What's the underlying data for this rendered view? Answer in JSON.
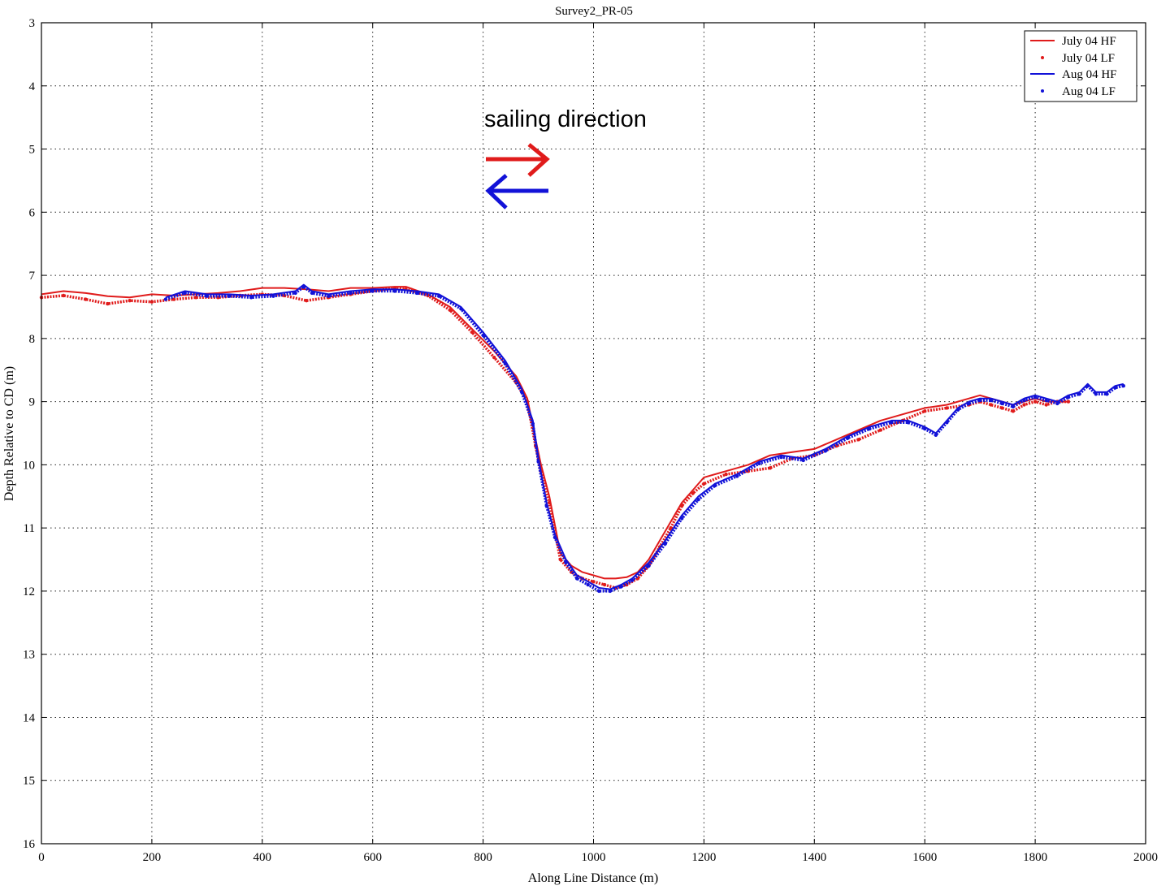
{
  "chart_data": {
    "type": "line",
    "title": "Survey2_PR-05",
    "xlabel": "Along Line Distance (m)",
    "ylabel": "Depth Relative to CD (m)",
    "xlim": [
      0,
      2000
    ],
    "ylim": [
      3,
      16
    ],
    "y_reversed": true,
    "grid": true,
    "legend_position": "top-right",
    "xticks": [
      "0",
      "200",
      "400",
      "600",
      "800",
      "1000",
      "1200",
      "1400",
      "1600",
      "1800",
      "2000"
    ],
    "yticks": [
      "3",
      "4",
      "5",
      "6",
      "7",
      "8",
      "9",
      "10",
      "11",
      "12",
      "13",
      "14",
      "15",
      "16"
    ],
    "annotation": "sailing direction",
    "series": [
      {
        "name": "July 04 HF",
        "color": "#e01b1b",
        "style": "line",
        "x": [
          0,
          40,
          80,
          120,
          160,
          200,
          240,
          280,
          320,
          360,
          400,
          440,
          480,
          520,
          560,
          600,
          640,
          660,
          700,
          740,
          780,
          820,
          860,
          880,
          895,
          905,
          920,
          940,
          960,
          980,
          1000,
          1020,
          1040,
          1060,
          1080,
          1100,
          1120,
          1140,
          1160,
          1180,
          1200,
          1240,
          1280,
          1320,
          1360,
          1400,
          1440,
          1480,
          1520,
          1560,
          1600,
          1640,
          1680,
          1700,
          1720,
          1740,
          1760,
          1780,
          1800,
          1820,
          1840,
          1860
        ],
        "y": [
          7.3,
          7.25,
          7.28,
          7.33,
          7.35,
          7.3,
          7.32,
          7.3,
          7.28,
          7.25,
          7.2,
          7.2,
          7.22,
          7.25,
          7.2,
          7.2,
          7.18,
          7.18,
          7.3,
          7.5,
          7.85,
          8.2,
          8.6,
          8.95,
          9.6,
          10.0,
          10.5,
          11.4,
          11.6,
          11.7,
          11.75,
          11.8,
          11.8,
          11.78,
          11.7,
          11.5,
          11.2,
          10.9,
          10.6,
          10.4,
          10.2,
          10.1,
          10.0,
          9.85,
          9.8,
          9.75,
          9.6,
          9.45,
          9.3,
          9.2,
          9.1,
          9.05,
          8.95,
          8.9,
          8.95,
          9.0,
          9.05,
          9.0,
          8.95,
          9.0,
          9.0,
          9.0
        ]
      },
      {
        "name": "July 04 LF",
        "color": "#e01b1b",
        "style": "markers",
        "x": [
          0,
          40,
          80,
          120,
          160,
          200,
          240,
          280,
          320,
          360,
          400,
          440,
          480,
          520,
          560,
          600,
          640,
          660,
          700,
          740,
          780,
          820,
          860,
          880,
          895,
          905,
          920,
          940,
          960,
          980,
          1000,
          1020,
          1040,
          1060,
          1080,
          1100,
          1120,
          1140,
          1160,
          1180,
          1200,
          1240,
          1280,
          1320,
          1360,
          1400,
          1440,
          1480,
          1520,
          1560,
          1600,
          1640,
          1680,
          1700,
          1720,
          1740,
          1760,
          1780,
          1800,
          1820,
          1840,
          1860
        ],
        "y": [
          7.35,
          7.32,
          7.38,
          7.45,
          7.4,
          7.42,
          7.38,
          7.35,
          7.35,
          7.32,
          7.3,
          7.32,
          7.4,
          7.35,
          7.3,
          7.25,
          7.2,
          7.22,
          7.32,
          7.55,
          7.9,
          8.3,
          8.7,
          9.0,
          9.7,
          10.1,
          10.6,
          11.5,
          11.7,
          11.8,
          11.85,
          11.9,
          11.95,
          11.9,
          11.8,
          11.6,
          11.3,
          11.0,
          10.65,
          10.45,
          10.3,
          10.15,
          10.1,
          10.05,
          9.9,
          9.85,
          9.7,
          9.6,
          9.45,
          9.3,
          9.15,
          9.1,
          9.05,
          9.0,
          9.05,
          9.1,
          9.15,
          9.05,
          9.0,
          9.05,
          9.0,
          9.0
        ]
      },
      {
        "name": "Aug 04 HF",
        "color": "#1212d8",
        "style": "line",
        "x": [
          225,
          260,
          300,
          340,
          380,
          420,
          460,
          475,
          490,
          520,
          560,
          600,
          640,
          680,
          720,
          760,
          800,
          840,
          870,
          890,
          900,
          915,
          930,
          950,
          970,
          990,
          1010,
          1030,
          1050,
          1070,
          1100,
          1130,
          1160,
          1190,
          1220,
          1260,
          1300,
          1340,
          1380,
          1420,
          1460,
          1500,
          1540,
          1570,
          1600,
          1620,
          1640,
          1660,
          1680,
          1700,
          1720,
          1740,
          1760,
          1780,
          1800,
          1820,
          1840,
          1860,
          1880,
          1895,
          1910,
          1930,
          1945,
          1960
        ],
        "y": [
          7.35,
          7.25,
          7.3,
          7.3,
          7.32,
          7.3,
          7.25,
          7.15,
          7.25,
          7.3,
          7.25,
          7.22,
          7.22,
          7.25,
          7.3,
          7.5,
          7.9,
          8.35,
          8.8,
          9.3,
          9.9,
          10.6,
          11.1,
          11.5,
          11.75,
          11.85,
          11.95,
          11.97,
          11.9,
          11.8,
          11.55,
          11.2,
          10.8,
          10.5,
          10.3,
          10.15,
          9.95,
          9.85,
          9.9,
          9.75,
          9.55,
          9.4,
          9.3,
          9.3,
          9.4,
          9.5,
          9.3,
          9.1,
          9.0,
          8.95,
          8.95,
          9.0,
          9.05,
          8.95,
          8.9,
          8.95,
          9.0,
          8.9,
          8.85,
          8.72,
          8.85,
          8.85,
          8.75,
          8.72
        ]
      },
      {
        "name": "Aug 04 LF",
        "color": "#1212d8",
        "style": "markers",
        "x": [
          225,
          260,
          300,
          340,
          380,
          420,
          460,
          475,
          490,
          520,
          560,
          600,
          640,
          680,
          720,
          760,
          800,
          840,
          870,
          890,
          900,
          915,
          930,
          950,
          970,
          990,
          1010,
          1030,
          1050,
          1070,
          1100,
          1130,
          1160,
          1190,
          1220,
          1260,
          1300,
          1340,
          1380,
          1420,
          1460,
          1500,
          1540,
          1570,
          1600,
          1620,
          1640,
          1660,
          1680,
          1700,
          1720,
          1740,
          1760,
          1780,
          1800,
          1820,
          1840,
          1860,
          1880,
          1895,
          1910,
          1930,
          1945,
          1960
        ],
        "y": [
          7.38,
          7.28,
          7.33,
          7.33,
          7.35,
          7.33,
          7.28,
          7.18,
          7.28,
          7.33,
          7.28,
          7.25,
          7.25,
          7.28,
          7.33,
          7.53,
          7.95,
          8.4,
          8.85,
          9.35,
          9.95,
          10.65,
          11.15,
          11.55,
          11.8,
          11.9,
          12.0,
          12.0,
          11.93,
          11.83,
          11.6,
          11.25,
          10.85,
          10.55,
          10.33,
          10.18,
          9.98,
          9.88,
          9.93,
          9.78,
          9.58,
          9.43,
          9.33,
          9.33,
          9.43,
          9.53,
          9.33,
          9.13,
          9.03,
          8.98,
          8.98,
          9.03,
          9.08,
          8.98,
          8.93,
          8.98,
          9.03,
          8.93,
          8.88,
          8.75,
          8.88,
          8.88,
          8.78,
          8.75
        ]
      }
    ]
  }
}
